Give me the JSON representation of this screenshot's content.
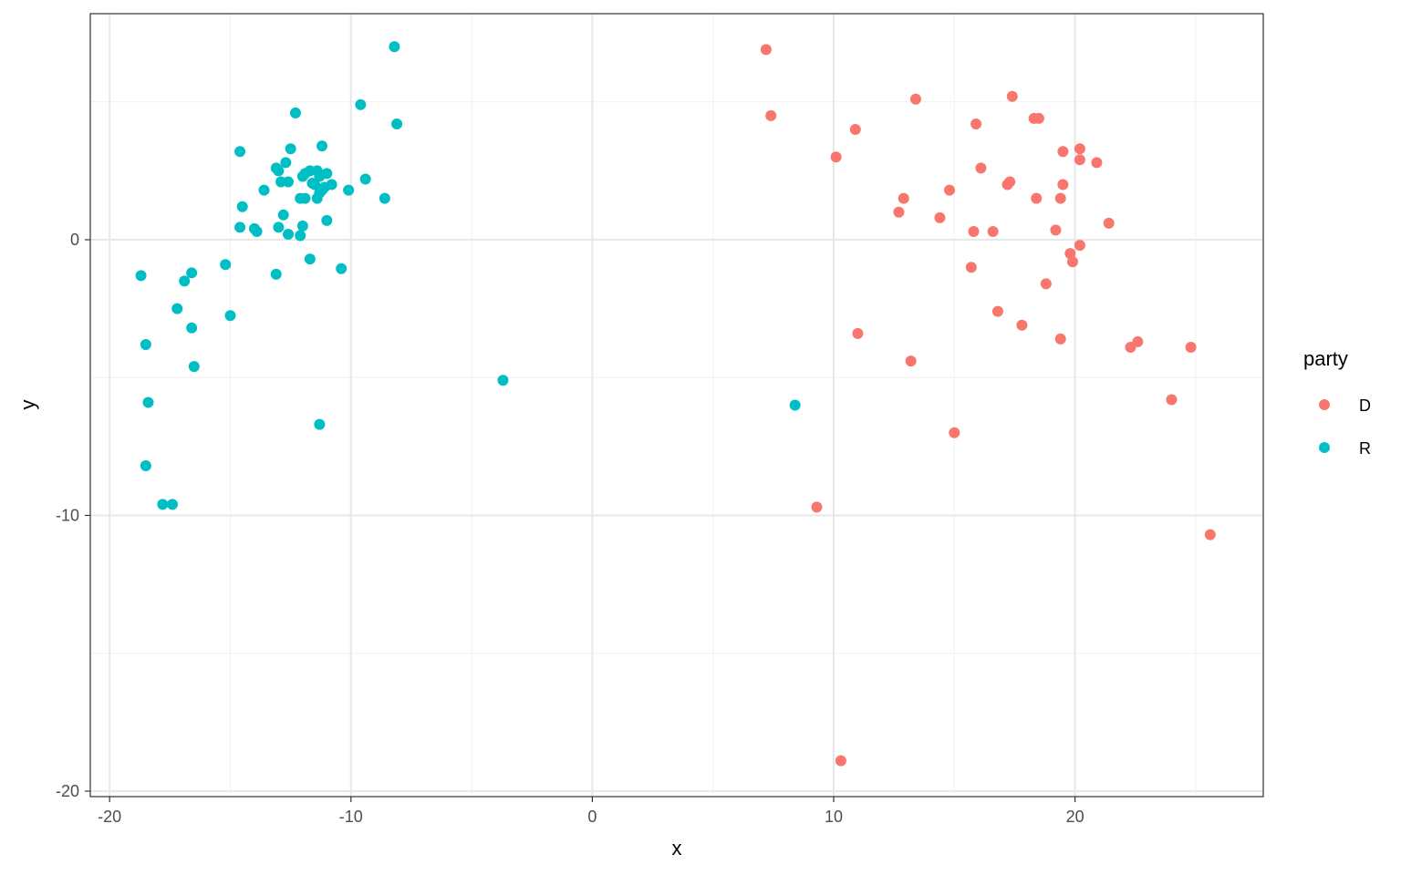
{
  "chart_data": {
    "type": "scatter",
    "title": "",
    "xlabel": "x",
    "ylabel": "y",
    "xlim": [
      -20.8,
      27.8
    ],
    "ylim": [
      -20.2,
      8.2
    ],
    "x_major_ticks": [
      -20,
      -10,
      0,
      10,
      20
    ],
    "x_tick_labels": [
      "-20",
      "-10",
      "0",
      "10",
      "20"
    ],
    "x_minor_ticks": [
      -15,
      -5,
      5,
      15,
      25
    ],
    "y_major_ticks": [
      -20,
      -10,
      0
    ],
    "y_tick_labels": [
      "-20",
      "-10",
      "0"
    ],
    "y_minor_ticks": [
      -15,
      -5,
      5
    ],
    "grid": true,
    "legend": {
      "title": "party",
      "position": "right"
    },
    "series": [
      {
        "name": "D",
        "color": "#F8766D",
        "points": [
          [
            7.2,
            6.9
          ],
          [
            7.4,
            4.5
          ],
          [
            10.1,
            3.0
          ],
          [
            10.9,
            4.0
          ],
          [
            13.4,
            5.1
          ],
          [
            15.9,
            4.2
          ],
          [
            17.4,
            5.2
          ],
          [
            18.3,
            4.4
          ],
          [
            18.5,
            4.4
          ],
          [
            19.5,
            3.2
          ],
          [
            20.2,
            3.3
          ],
          [
            20.2,
            2.9
          ],
          [
            20.9,
            2.8
          ],
          [
            16.1,
            2.6
          ],
          [
            17.3,
            2.1
          ],
          [
            17.2,
            2.0
          ],
          [
            19.5,
            2.0
          ],
          [
            14.8,
            1.8
          ],
          [
            12.9,
            1.5
          ],
          [
            18.4,
            1.5
          ],
          [
            19.4,
            1.5
          ],
          [
            12.7,
            1.0
          ],
          [
            14.4,
            0.8
          ],
          [
            21.4,
            0.6
          ],
          [
            15.8,
            0.3
          ],
          [
            16.6,
            0.3
          ],
          [
            19.2,
            0.35
          ],
          [
            20.2,
            -0.2
          ],
          [
            19.8,
            -0.5
          ],
          [
            19.9,
            -0.8
          ],
          [
            15.7,
            -1.0
          ],
          [
            18.8,
            -1.6
          ],
          [
            16.8,
            -2.6
          ],
          [
            17.8,
            -3.1
          ],
          [
            11.0,
            -3.4
          ],
          [
            19.4,
            -3.6
          ],
          [
            22.6,
            -3.7
          ],
          [
            22.3,
            -3.9
          ],
          [
            24.8,
            -3.9
          ],
          [
            13.2,
            -4.4
          ],
          [
            24.0,
            -5.8
          ],
          [
            15.0,
            -7.0
          ],
          [
            9.3,
            -9.7
          ],
          [
            25.6,
            -10.7
          ],
          [
            10.3,
            -18.9
          ]
        ]
      },
      {
        "name": "R",
        "color": "#00BFC4",
        "points": [
          [
            -8.2,
            7.0
          ],
          [
            -8.1,
            4.2
          ],
          [
            -9.6,
            4.9
          ],
          [
            -12.3,
            4.6
          ],
          [
            -11.2,
            3.4
          ],
          [
            -12.5,
            3.3
          ],
          [
            -14.6,
            3.2
          ],
          [
            -12.7,
            2.8
          ],
          [
            -13.1,
            2.6
          ],
          [
            -13.0,
            2.5
          ],
          [
            -11.9,
            2.4
          ],
          [
            -11.7,
            2.5
          ],
          [
            -11.4,
            2.5
          ],
          [
            -11.0,
            2.4
          ],
          [
            -11.3,
            2.3
          ],
          [
            -12.0,
            2.3
          ],
          [
            -12.6,
            2.1
          ],
          [
            -12.9,
            2.1
          ],
          [
            -11.6,
            2.05
          ],
          [
            -11.5,
            2.0
          ],
          [
            -10.8,
            2.0
          ],
          [
            -11.1,
            1.9
          ],
          [
            -11.2,
            1.8
          ],
          [
            -9.4,
            2.2
          ],
          [
            -10.1,
            1.8
          ],
          [
            -13.6,
            1.8
          ],
          [
            -11.3,
            1.7
          ],
          [
            -11.4,
            1.5
          ],
          [
            -12.1,
            1.5
          ],
          [
            -11.9,
            1.5
          ],
          [
            -8.6,
            1.5
          ],
          [
            -14.5,
            1.2
          ],
          [
            -12.8,
            0.9
          ],
          [
            -11.0,
            0.7
          ],
          [
            -14.6,
            0.45
          ],
          [
            -13.0,
            0.45
          ],
          [
            -12.0,
            0.5
          ],
          [
            -14.0,
            0.4
          ],
          [
            -13.9,
            0.3
          ],
          [
            -12.6,
            0.2
          ],
          [
            -12.1,
            0.15
          ],
          [
            -11.7,
            -0.7
          ],
          [
            -15.2,
            -0.9
          ],
          [
            -10.4,
            -1.05
          ],
          [
            -13.1,
            -1.25
          ],
          [
            -18.7,
            -1.3
          ],
          [
            -16.6,
            -1.2
          ],
          [
            -16.9,
            -1.5
          ],
          [
            -17.2,
            -2.5
          ],
          [
            -15.0,
            -2.75
          ],
          [
            -16.6,
            -3.2
          ],
          [
            -18.5,
            -3.8
          ],
          [
            -16.5,
            -4.6
          ],
          [
            -3.7,
            -5.1
          ],
          [
            -18.4,
            -5.9
          ],
          [
            -11.3,
            -6.7
          ],
          [
            8.4,
            -6.0
          ],
          [
            -18.5,
            -8.2
          ],
          [
            -17.8,
            -9.6
          ],
          [
            -17.4,
            -9.6
          ]
        ]
      }
    ]
  }
}
